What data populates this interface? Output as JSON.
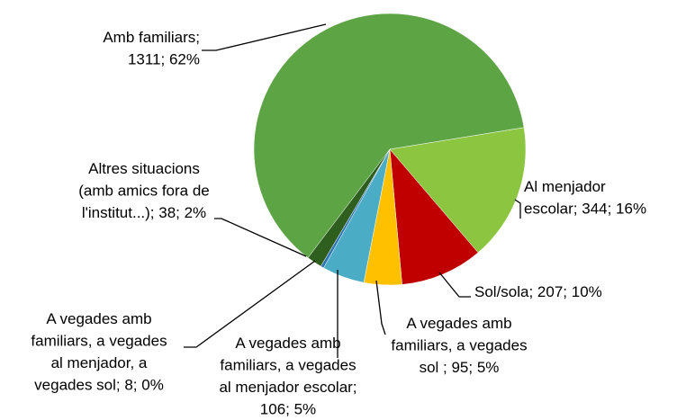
{
  "chart_data": {
    "type": "pie",
    "values": [
      1311,
      344,
      207,
      95,
      106,
      8,
      38
    ],
    "value_labels": [
      [
        "Amb familiars;",
        "1311; 62%"
      ],
      [
        "Al menjador",
        "escolar; 344; 16%"
      ],
      [
        "Sol/sola; 207; 10%"
      ],
      [
        "A vegades amb",
        "familiars, a vegades",
        "sol ; 95; 5%"
      ],
      [
        "A vegades amb",
        "familiars, a vegades",
        "al menjador escolar;",
        "106; 5%"
      ],
      [
        "A vegades amb",
        "familiars, a vegades",
        "al menjador, a",
        "vegades sol; 8; 0%"
      ],
      [
        "Altres situacions",
        "(amb amics fora de",
        "l'institut...); 38; 2%"
      ]
    ],
    "colors": [
      "#5da445",
      "#8cc540",
      "#c00000",
      "#ffc000",
      "#4bacc6",
      "#2e75b6",
      "#2f5f1f"
    ]
  }
}
